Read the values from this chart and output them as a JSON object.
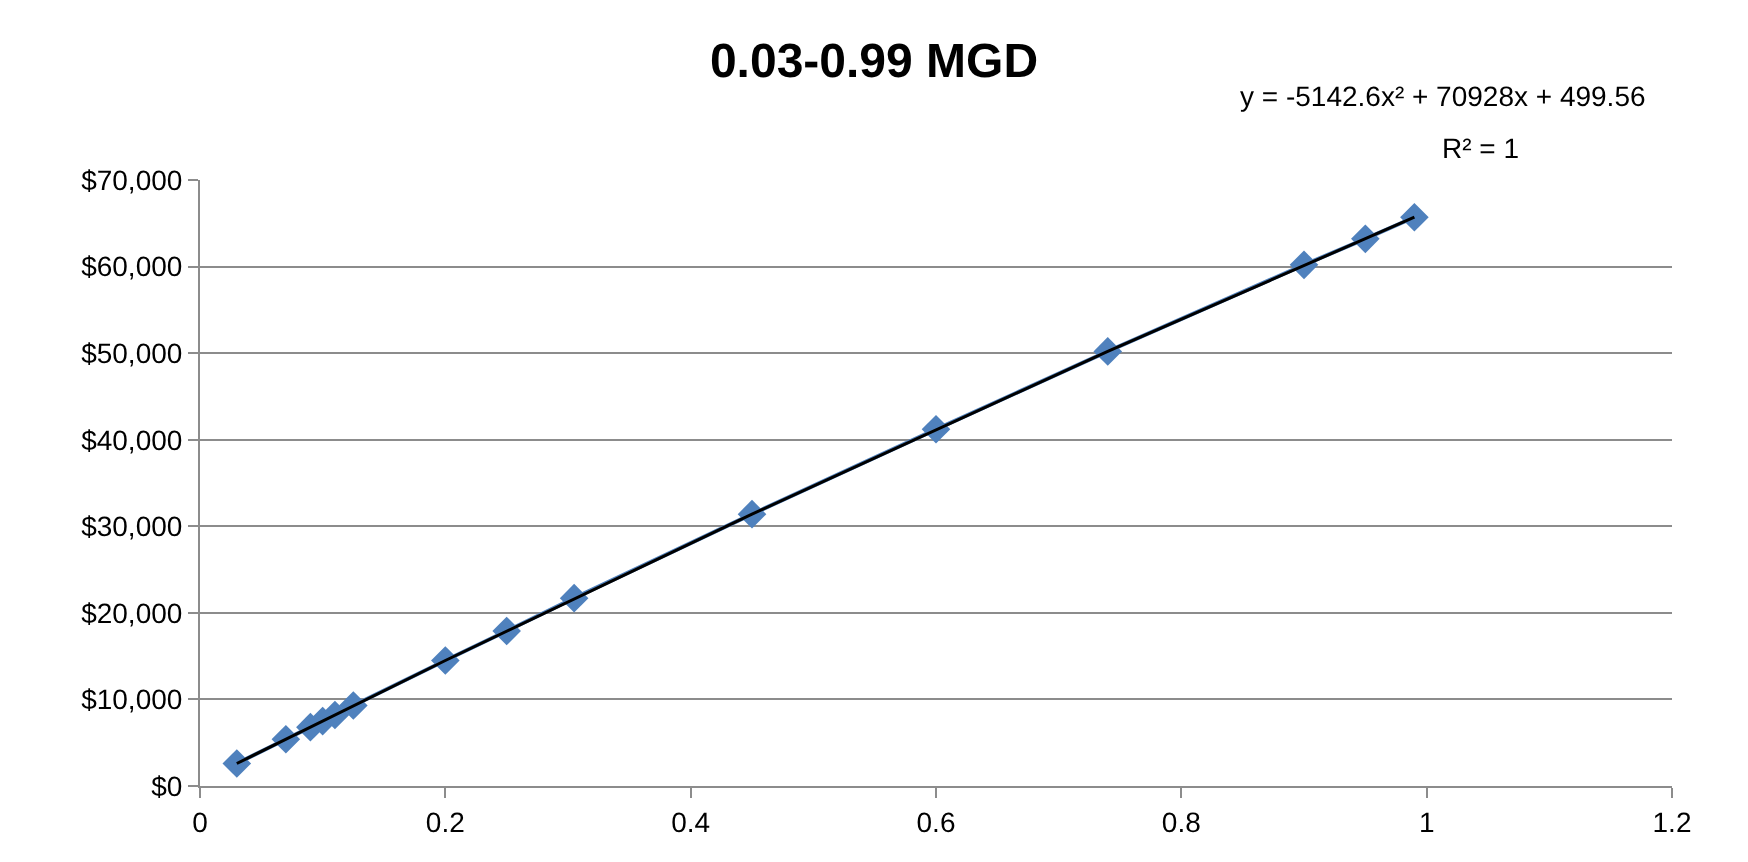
{
  "chart_data": {
    "type": "scatter",
    "title": "0.03-0.99 MGD",
    "x": [
      0.03,
      0.07,
      0.09,
      0.1,
      0.11,
      0.125,
      0.2,
      0.25,
      0.305,
      0.45,
      0.6,
      0.74,
      0.9,
      0.95,
      0.99
    ],
    "series": [
      {
        "color": "#4f81bd",
        "marker": "diamond",
        "line_style": "solid",
        "values": [
          2600,
          5400,
          6800,
          7500,
          8200,
          9300,
          14500,
          17900,
          21700,
          31400,
          41200,
          50200,
          60200,
          63200,
          65700
        ]
      },
      {
        "type": "line",
        "color": "#000000",
        "marker": "none",
        "line_style": "solid",
        "x": [
          0.03,
          0.2,
          0.45,
          0.74,
          0.99
        ],
        "values": [
          2600,
          14500,
          31400,
          50200,
          65700
        ]
      }
    ],
    "annotations": [
      "y = -5142.6x² + 70928x + 499.56",
      "R² = 1"
    ],
    "xlim": [
      0,
      1.2
    ],
    "xticks": [
      0,
      0.2,
      0.4,
      0.6,
      0.8,
      1,
      1.2
    ],
    "ylim": [
      0,
      70000
    ],
    "yticks": [
      {
        "value": 0,
        "label": "$0"
      },
      {
        "value": 10000,
        "label": "$10,000"
      },
      {
        "value": 20000,
        "label": "$20,000"
      },
      {
        "value": 30000,
        "label": "$30,000"
      },
      {
        "value": 40000,
        "label": "$40,000"
      },
      {
        "value": 50000,
        "label": "$50,000"
      },
      {
        "value": 60000,
        "label": "$60,000"
      },
      {
        "value": 70000,
        "label": "$70,000"
      }
    ],
    "grid": "y"
  }
}
